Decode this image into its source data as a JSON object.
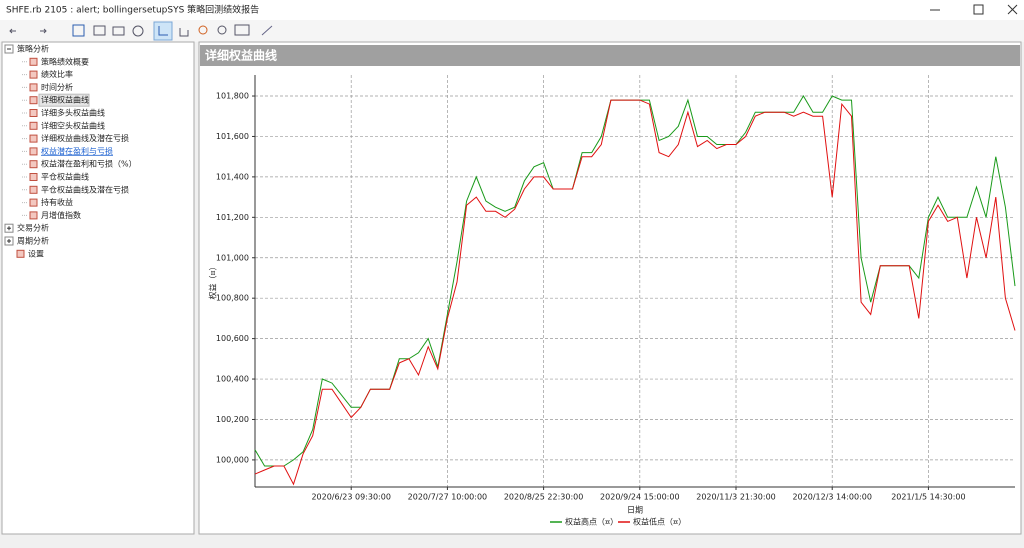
{
  "window": {
    "title": "SHFE.rb 2105 : alert; bollingersetupSYS 策略回测绩效报告"
  },
  "tree": [
    {
      "label": "策略分析",
      "children": [
        {
          "label": "策略绩效概要"
        },
        {
          "label": "绩效比率"
        },
        {
          "label": "时间分析"
        },
        {
          "label": "详细权益曲线",
          "state": "selected"
        },
        {
          "label": "详细多头权益曲线"
        },
        {
          "label": "详细空头权益曲线"
        },
        {
          "label": "详细权益曲线及潜在亏损"
        },
        {
          "label": "权益潜在盈利与亏损",
          "state": "link"
        },
        {
          "label": "权益潜在盈利和亏损（%）"
        },
        {
          "label": "平仓权益曲线"
        },
        {
          "label": "平仓权益曲线及潜在亏损"
        },
        {
          "label": "持有收益"
        },
        {
          "label": "月增值指数"
        }
      ]
    },
    {
      "label": "交易分析",
      "children": []
    },
    {
      "label": "周期分析",
      "children": []
    },
    {
      "label": "设置"
    }
  ],
  "panel": {
    "title": "详细权益曲线"
  },
  "chart_data": {
    "type": "line",
    "x_label": "日期",
    "y_label": "权益（¤）",
    "grid": true,
    "categories": [
      null,
      null,
      null,
      null,
      null,
      null,
      null,
      null,
      null,
      null,
      "2020/6/23 09:30:00",
      null,
      null,
      null,
      null,
      null,
      null,
      null,
      null,
      null,
      "2020/7/27 10:00:00",
      null,
      null,
      null,
      null,
      null,
      null,
      null,
      null,
      null,
      "2020/8/25 22:30:00",
      null,
      null,
      null,
      null,
      null,
      null,
      null,
      null,
      null,
      "2020/9/24 15:00:00",
      null,
      null,
      null,
      null,
      null,
      null,
      null,
      null,
      null,
      "2020/11/3 21:30:00",
      null,
      null,
      null,
      null,
      null,
      null,
      null,
      null,
      null,
      "2020/12/3 14:00:00",
      null,
      null,
      null,
      null,
      null,
      null,
      null,
      null,
      null,
      "2021/1/5 14:30:00",
      null,
      null,
      null,
      null,
      null,
      null,
      null,
      null,
      null
    ],
    "series": [
      {
        "name": "权益高点（¤）",
        "color": "#1a9a1a",
        "values": [
          100050,
          99970,
          99970,
          99970,
          100000,
          100040,
          100150,
          100400,
          100380,
          100320,
          100260,
          100260,
          100350,
          100350,
          100350,
          100500,
          100500,
          100530,
          100600,
          100460,
          100720,
          100980,
          101280,
          101400,
          101280,
          101250,
          101230,
          101250,
          101380,
          101450,
          101470,
          101340,
          101340,
          101340,
          101520,
          101520,
          101600,
          101780,
          101780,
          101780,
          101780,
          101780,
          101580,
          101600,
          101650,
          101780,
          101600,
          101600,
          101560,
          101560,
          101560,
          101620,
          101720,
          101720,
          101720,
          101720,
          101720,
          101800,
          101720,
          101720,
          101800,
          101780,
          101780,
          101000,
          100780,
          100960,
          100960,
          100960,
          100960,
          100900,
          101200,
          101300,
          101200,
          101200,
          101200,
          101350,
          101200,
          101500,
          101250,
          100860
        ]
      },
      {
        "name": "权益低点（¤）",
        "color": "#e01010",
        "values": [
          99930,
          99950,
          99970,
          99970,
          99880,
          100030,
          100120,
          100350,
          100350,
          100280,
          100210,
          100260,
          100350,
          100350,
          100350,
          100480,
          100500,
          100420,
          100560,
          100450,
          100700,
          100880,
          101260,
          101300,
          101230,
          101230,
          101200,
          101240,
          101340,
          101400,
          101400,
          101340,
          101340,
          101340,
          101500,
          101500,
          101560,
          101780,
          101780,
          101780,
          101780,
          101760,
          101520,
          101500,
          101560,
          101720,
          101550,
          101580,
          101540,
          101560,
          101560,
          101600,
          101700,
          101720,
          101720,
          101720,
          101700,
          101720,
          101700,
          101700,
          101300,
          101760,
          101700,
          100780,
          100720,
          100960,
          100960,
          100960,
          100960,
          100700,
          101180,
          101260,
          101180,
          101200,
          100900,
          101200,
          101000,
          101300,
          100800,
          100640
        ]
      }
    ],
    "ylim": [
      99866,
      101904
    ],
    "yticks": [
      {
        "value": 100000,
        "label": "100,000"
      },
      {
        "value": 100200,
        "label": "100,200"
      },
      {
        "value": 100400,
        "label": "100,400"
      },
      {
        "value": 100600,
        "label": "100,600"
      },
      {
        "value": 100800,
        "label": "100,800"
      },
      {
        "value": 101000,
        "label": "101,000"
      },
      {
        "value": 101200,
        "label": "101,200"
      },
      {
        "value": 101400,
        "label": "101,400"
      },
      {
        "value": 101600,
        "label": "101,600"
      },
      {
        "value": 101800,
        "label": "101,800"
      }
    ]
  }
}
